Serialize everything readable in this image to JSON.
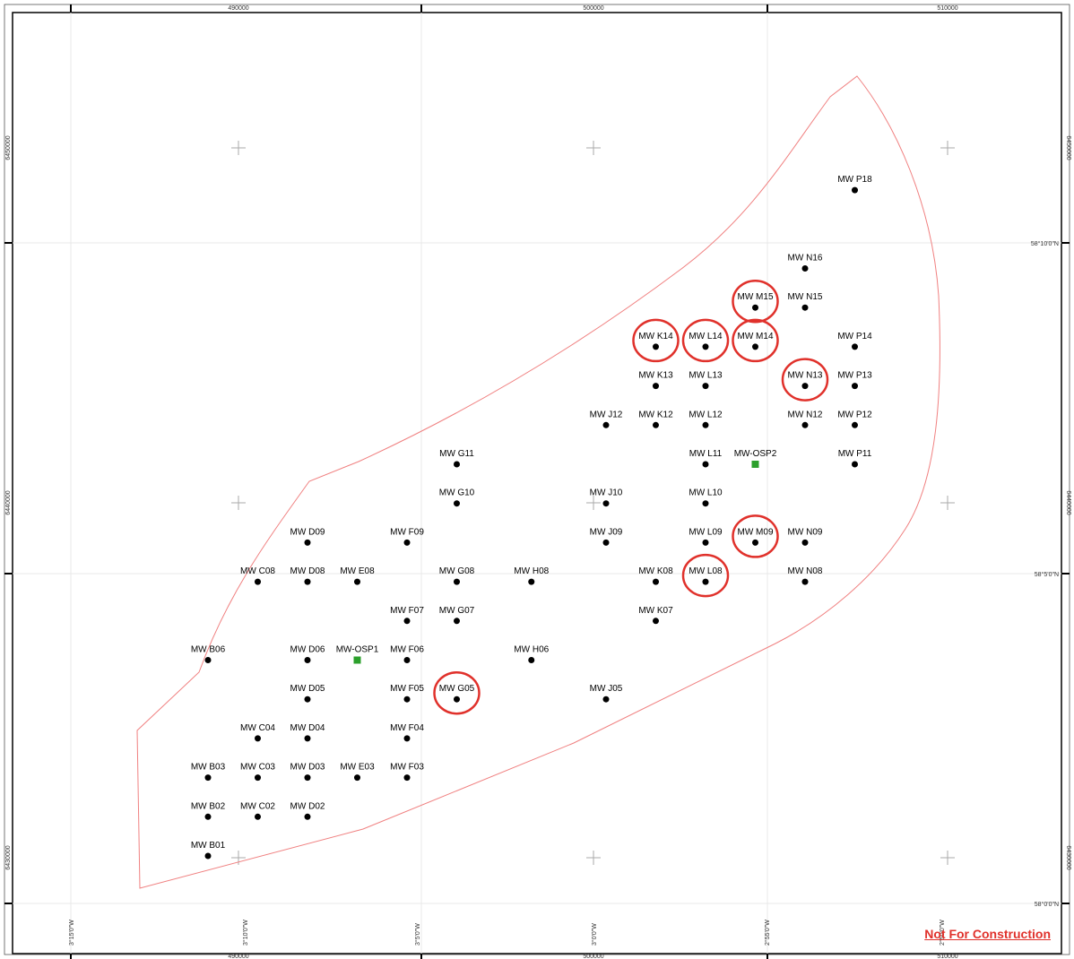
{
  "map": {
    "top_eastings": [
      "490000",
      "500000",
      "510000"
    ],
    "bottom_eastings": [
      "490000",
      "500000",
      "510000"
    ],
    "left_northings": [
      "6450000",
      "6440000",
      "6430000"
    ],
    "right_northings": [
      "6450000",
      "6440000",
      "6430000"
    ],
    "right_latitudes": [
      "58°10'0\"N",
      "58°5'0\"N",
      "58°0'0\"N"
    ],
    "bottom_longitudes": [
      "3°15'0\"W",
      "3°10'0\"W",
      "3°5'0\"W",
      "3°0'0\"W",
      "2°55'0\"W",
      "2°50'0\"W"
    ],
    "boundary_color": "#f08080",
    "highlight_color": "#e0312b",
    "substation_color": "#2ca02c",
    "turbine_color": "#000000"
  },
  "turbines": [
    {
      "label": "MW B01",
      "col": 0,
      "row": 0
    },
    {
      "label": "MW B02",
      "col": 0,
      "row": 1
    },
    {
      "label": "MW C02",
      "col": 1,
      "row": 1
    },
    {
      "label": "MW D02",
      "col": 2,
      "row": 1
    },
    {
      "label": "MW B03",
      "col": 0,
      "row": 2
    },
    {
      "label": "MW C03",
      "col": 1,
      "row": 2
    },
    {
      "label": "MW D03",
      "col": 2,
      "row": 2
    },
    {
      "label": "MW E03",
      "col": 3,
      "row": 2
    },
    {
      "label": "MW F03",
      "col": 4,
      "row": 2
    },
    {
      "label": "MW C04",
      "col": 1,
      "row": 3
    },
    {
      "label": "MW D04",
      "col": 2,
      "row": 3
    },
    {
      "label": "MW F04",
      "col": 4,
      "row": 3
    },
    {
      "label": "MW D05",
      "col": 2,
      "row": 4
    },
    {
      "label": "MW F05",
      "col": 4,
      "row": 4
    },
    {
      "label": "MW G05",
      "col": 5,
      "row": 4
    },
    {
      "label": "MW J05",
      "col": 8,
      "row": 4
    },
    {
      "label": "MW B06",
      "col": 0,
      "row": 5
    },
    {
      "label": "MW D06",
      "col": 2,
      "row": 5
    },
    {
      "label": "MW F06",
      "col": 4,
      "row": 5
    },
    {
      "label": "MW H06",
      "col": 6.5,
      "row": 5
    },
    {
      "label": "MW F07",
      "col": 4,
      "row": 6
    },
    {
      "label": "MW G07",
      "col": 5,
      "row": 6
    },
    {
      "label": "MW K07",
      "col": 9,
      "row": 6
    },
    {
      "label": "MW C08",
      "col": 1,
      "row": 7
    },
    {
      "label": "MW D08",
      "col": 2,
      "row": 7
    },
    {
      "label": "MW E08",
      "col": 3,
      "row": 7
    },
    {
      "label": "MW G08",
      "col": 5,
      "row": 7
    },
    {
      "label": "MW H08",
      "col": 6.5,
      "row": 7
    },
    {
      "label": "MW K08",
      "col": 9,
      "row": 7
    },
    {
      "label": "MW L08",
      "col": 10,
      "row": 7
    },
    {
      "label": "MW N08",
      "col": 12,
      "row": 7
    },
    {
      "label": "MW D09",
      "col": 2,
      "row": 8
    },
    {
      "label": "MW F09",
      "col": 4,
      "row": 8
    },
    {
      "label": "MW J09",
      "col": 8,
      "row": 8
    },
    {
      "label": "MW L09",
      "col": 10,
      "row": 8
    },
    {
      "label": "MW M09",
      "col": 11,
      "row": 8
    },
    {
      "label": "MW N09",
      "col": 12,
      "row": 8
    },
    {
      "label": "MW G10",
      "col": 5,
      "row": 9
    },
    {
      "label": "MW J10",
      "col": 8,
      "row": 9
    },
    {
      "label": "MW L10",
      "col": 10,
      "row": 9
    },
    {
      "label": "MW G11",
      "col": 5,
      "row": 10
    },
    {
      "label": "MW L11",
      "col": 10,
      "row": 10
    },
    {
      "label": "MW P11",
      "col": 13,
      "row": 10
    },
    {
      "label": "MW J12",
      "col": 8,
      "row": 11
    },
    {
      "label": "MW K12",
      "col": 9,
      "row": 11
    },
    {
      "label": "MW L12",
      "col": 10,
      "row": 11
    },
    {
      "label": "MW N12",
      "col": 12,
      "row": 11
    },
    {
      "label": "MW P12",
      "col": 13,
      "row": 11
    },
    {
      "label": "MW K13",
      "col": 9,
      "row": 12
    },
    {
      "label": "MW L13",
      "col": 10,
      "row": 12
    },
    {
      "label": "MW N13",
      "col": 12,
      "row": 12
    },
    {
      "label": "MW P13",
      "col": 13,
      "row": 12
    },
    {
      "label": "MW K14",
      "col": 9,
      "row": 13
    },
    {
      "label": "MW L14",
      "col": 10,
      "row": 13
    },
    {
      "label": "MW M14",
      "col": 11,
      "row": 13
    },
    {
      "label": "MW P14",
      "col": 13,
      "row": 13
    },
    {
      "label": "MW M15",
      "col": 11,
      "row": 14
    },
    {
      "label": "MW N15",
      "col": 12,
      "row": 14
    },
    {
      "label": "MW N16",
      "col": 12,
      "row": 15
    },
    {
      "label": "MW P18",
      "col": 13,
      "row": 17
    }
  ],
  "substations": [
    {
      "label": "MW-OSP1",
      "col": 3,
      "row": 5
    },
    {
      "label": "MW-OSP2",
      "col": 11,
      "row": 10
    }
  ],
  "highlighted": [
    "MW G05",
    "MW L08",
    "MW M09",
    "MW N13",
    "MW K14",
    "MW L14",
    "MW M14",
    "MW M15"
  ],
  "footer": {
    "not_for_construction": "Not For Construction"
  }
}
